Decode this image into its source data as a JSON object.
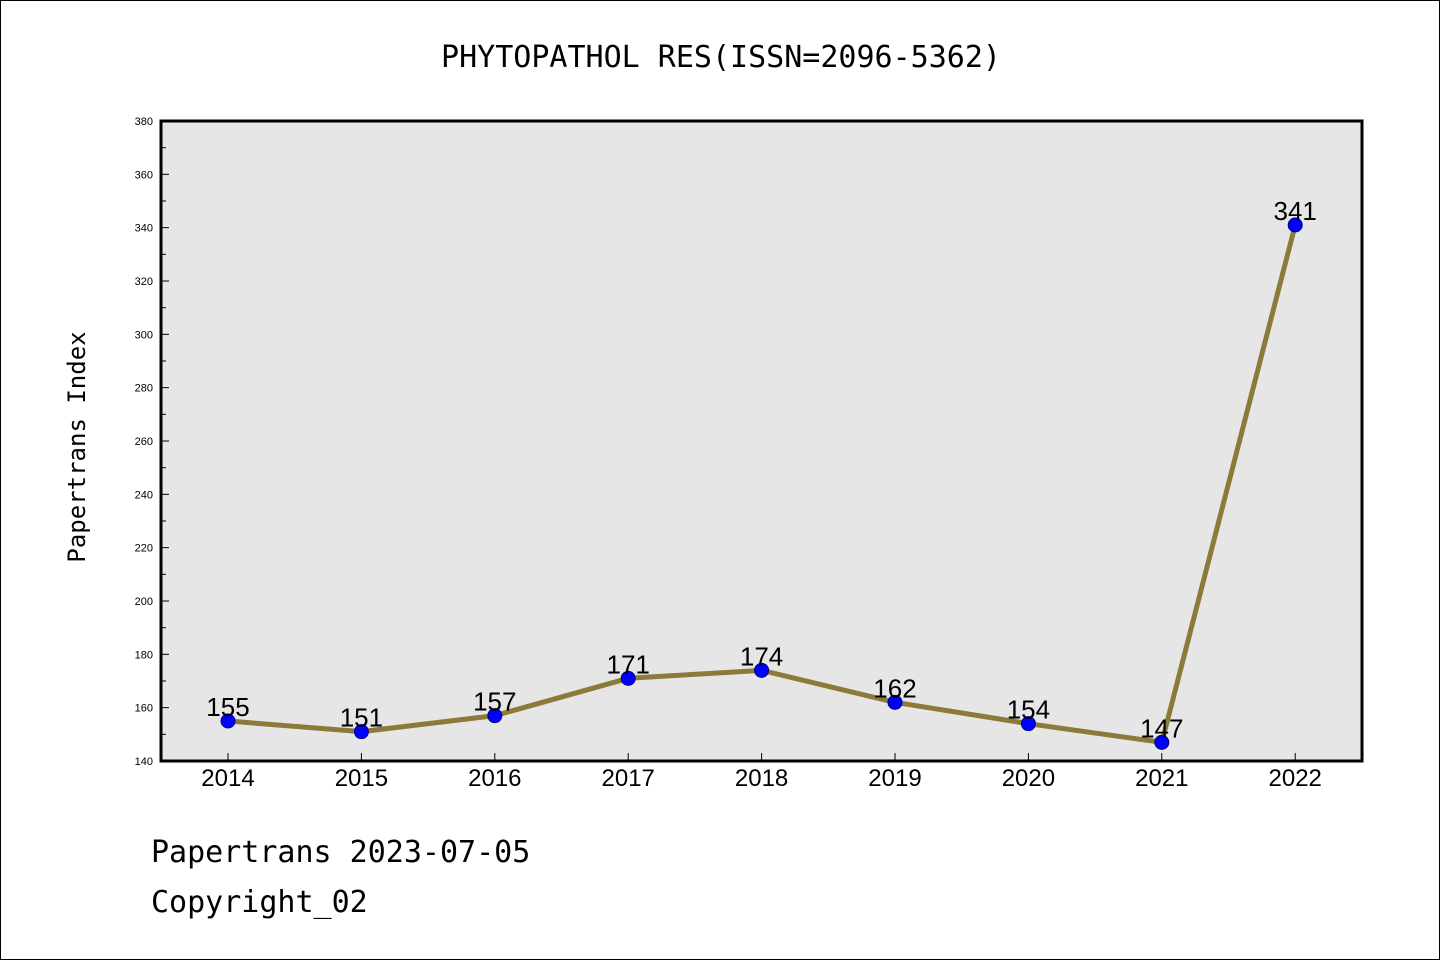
{
  "chart_data": {
    "type": "line",
    "title": "PHYTOPATHOL RES(ISSN=2096-5362)",
    "xlabel": "",
    "ylabel": "Papertrans Index",
    "categories": [
      "2014",
      "2015",
      "2016",
      "2017",
      "2018",
      "2019",
      "2020",
      "2021",
      "2022"
    ],
    "series": [
      {
        "values": [
          155,
          151,
          157,
          171,
          174,
          162,
          154,
          147,
          341
        ]
      }
    ],
    "data_labels": [
      "155",
      "151",
      "157",
      "171",
      "174",
      "162",
      "154",
      "147",
      "341"
    ],
    "ylim": [
      140,
      380
    ],
    "yticks": [
      "140",
      "160",
      "180",
      "200",
      "220",
      "240",
      "260",
      "280",
      "300",
      "320",
      "340",
      "360",
      "380"
    ],
    "grid": false,
    "legend": "none",
    "colors": {
      "line": "#8b7a3a",
      "marker": "#0000ff",
      "marker_edge": "#000080",
      "plot_background": "#e6e6e6"
    }
  },
  "footer": {
    "line1": "Papertrans 2023-07-05",
    "line2": "Copyright_02"
  }
}
